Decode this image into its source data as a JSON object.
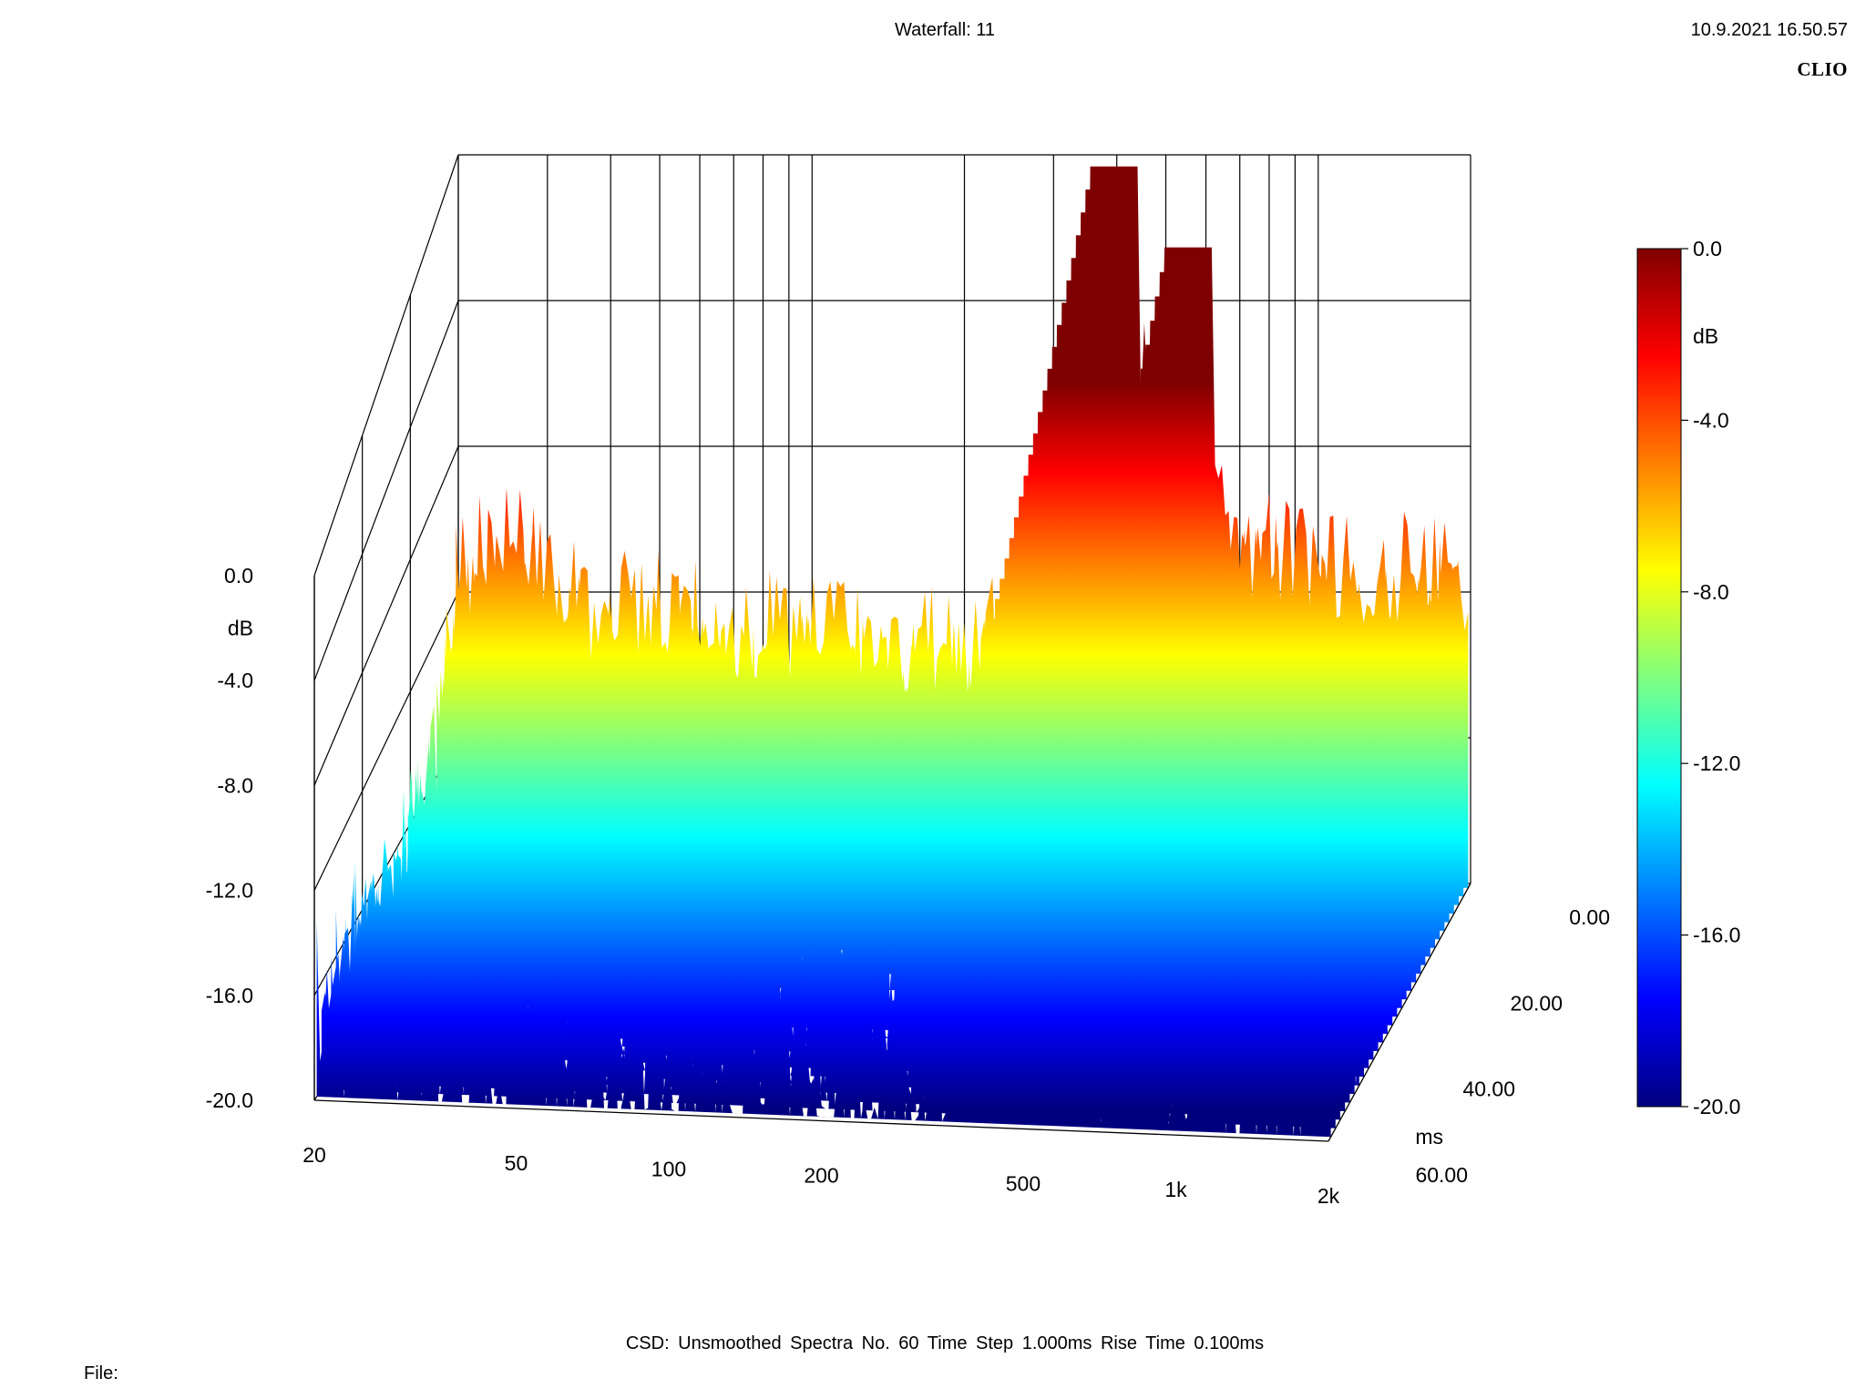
{
  "header": {
    "title": "Waterfall: 11",
    "timestamp": "10.9.2021 16.50.57",
    "brand": "CLIO"
  },
  "footer": {
    "settings": "CSD:   Unsmoothed   Spectra No. 60   Time Step 1.000ms   Rise Time 0.100ms",
    "file_label": "File:"
  },
  "colors": {
    "colormap": [
      "#00007f",
      "#0000ff",
      "#007fff",
      "#00ffff",
      "#7fff7f",
      "#ffff00",
      "#ff7f00",
      "#ff0000",
      "#7f0000"
    ],
    "grid": "#000000",
    "background": "#ffffff"
  },
  "chart_data": {
    "type": "waterfall",
    "title": "Waterfall: 11",
    "x_axis": {
      "label": "",
      "scale": "log",
      "ticks": [
        "20",
        "50",
        "100",
        "200",
        "500",
        "1k",
        "2k"
      ],
      "range": [
        20,
        2000
      ]
    },
    "y_axis": {
      "label": "dB",
      "ticks": [
        "0.0",
        "-4.0",
        "-8.0",
        "-12.0",
        "-16.0",
        "-20.0"
      ],
      "range": [
        -20,
        0
      ]
    },
    "z_axis": {
      "label": "ms",
      "ticks": [
        "0.00",
        "20.00",
        "40.00",
        "60.00"
      ],
      "range": [
        0,
        60
      ]
    },
    "colorbar": {
      "label": "dB",
      "ticks": [
        "0.0",
        "-4.0",
        "-8.0",
        "-12.0",
        "-16.0",
        "-20.0"
      ],
      "range": [
        -20,
        0
      ]
    },
    "spectra_count": 60,
    "time_step_ms": 1.0,
    "rise_time_ms": 0.1,
    "features": [
      {
        "name": "",
        "freq_hz": 400,
        "start_db": -4.5,
        "peak_db": 0.0,
        "decay_ms": 60
      },
      {
        "name": "",
        "freq_hz": 560,
        "start_db": -8.0,
        "peak_db": -2.2,
        "decay_ms": 55
      }
    ],
    "series": [
      {
        "time_ms": 0,
        "freq_hz": [
          20,
          25,
          30,
          40,
          50,
          70,
          100,
          150,
          200,
          300,
          380,
          420,
          560,
          700,
          1000,
          1500,
          2000
        ],
        "db": [
          -11,
          -10,
          -11,
          -12,
          -12,
          -12.5,
          -12.5,
          -13,
          -13,
          -12.5,
          -9,
          -4.5,
          -8,
          -10,
          -11,
          -11,
          -11
        ]
      }
    ]
  }
}
